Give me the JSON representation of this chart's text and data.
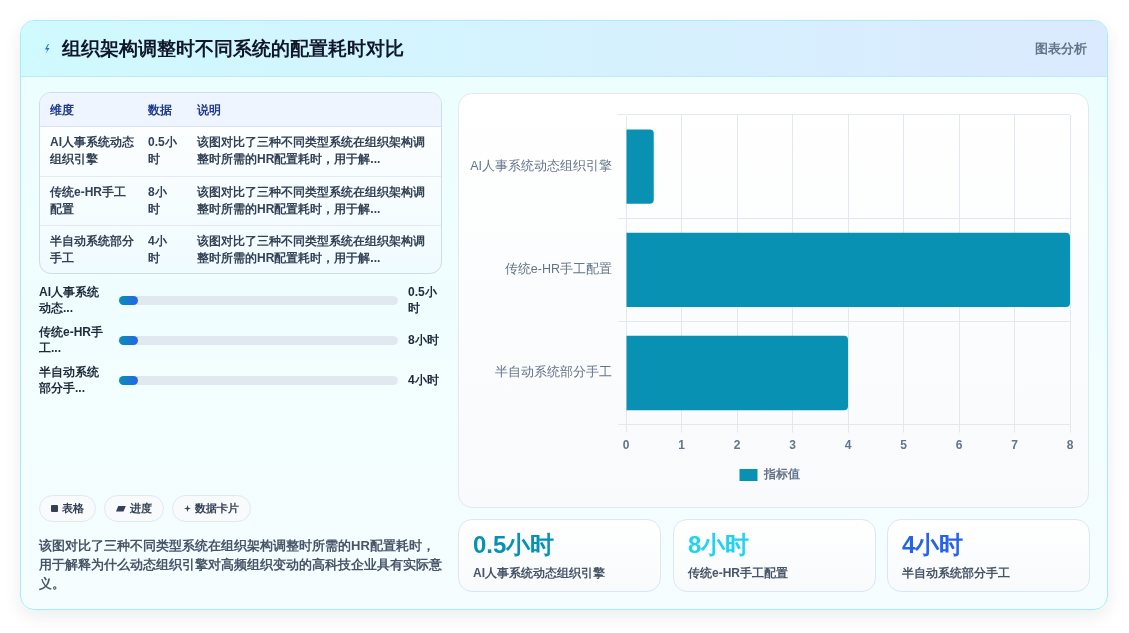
{
  "chart_data": [
    {
      "type": "other",
      "title": "组织架构调整时不同系统的配置耗时对比",
      "annotations": [
        "图表分析"
      ]
    },
    {
      "type": "bar",
      "orientation": "horizontal",
      "categories": [
        "AI人事系统动态组织引擎",
        "传统e-HR手工配置",
        "半自动系统部分手工"
      ],
      "series": [
        {
          "name": "指标值",
          "color": "#0891b2",
          "values": [
            0.5,
            8,
            4
          ]
        }
      ],
      "xlim": [
        0,
        8
      ],
      "xticks": [
        0,
        1,
        2,
        3,
        4,
        5,
        6,
        7,
        8
      ],
      "grid": true,
      "legend": "bottom"
    },
    {
      "type": "other",
      "categories": [
        "AI人事系统动态组织引擎",
        "传统e-HR手工配置",
        "半自动系统部分手工"
      ],
      "value_labels": [
        "0.5小时",
        "8小时",
        "4小时"
      ],
      "annotations": [
        "维度",
        "数据",
        "说明",
        "该图对比了三种不同类型系统在组织架构调整时所需的HR配置耗时，用于解...",
        "该图对比了三种不同类型系统在组织架构调整时所需的HR配置耗时，用于解...",
        "该图对比了三种不同类型系统在组织架构调整时所需的HR配置耗时，用于解..."
      ]
    },
    {
      "type": "other",
      "categories": [
        "AI人事系统动态...",
        "传统e-HR手工...",
        "半自动系统部分手..."
      ],
      "value_labels": [
        "0.5小时",
        "8小时",
        "4小时"
      ]
    },
    {
      "type": "other",
      "annotations": [
        "表格",
        "进度",
        "数据卡片",
        "该图对比了三种不同类型系统在组织架构调整时所需的HR配置耗时，用于解释为什么动态组织引擎对高频组织变动的高科技企业具有实际意义。"
      ]
    },
    {
      "type": "other",
      "categories": [
        "AI人事系统动态组织引擎",
        "传统e-HR手工配置",
        "半自动系统部分手工"
      ],
      "value_labels": [
        "0.5小时",
        "8小时",
        "4小时"
      ]
    }
  ]
}
